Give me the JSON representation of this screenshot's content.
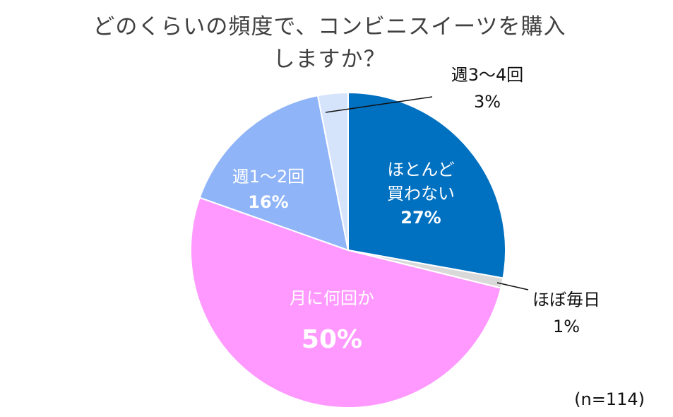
{
  "chart_data": {
    "type": "pie",
    "title_lines": [
      "どのくらいの頻度で、コンビニスイーツを購入",
      "しますか？"
    ],
    "note": "(n=114)",
    "slices": [
      {
        "label_lines": [
          "ほとんど",
          "買わない"
        ],
        "value_label": "27%",
        "value": 27,
        "color": "#0070C0"
      },
      {
        "label_lines": [
          "ほぼ毎日"
        ],
        "value_label": "1%",
        "value": 1,
        "color": "#D9D9D9"
      },
      {
        "label_lines": [
          "月に何回か"
        ],
        "value_label": "50%",
        "value": 50,
        "color": "#FF99FF"
      },
      {
        "label_lines": [
          "週1～2回"
        ],
        "value_label": "16%",
        "value": 16,
        "color": "#8FB4F7"
      },
      {
        "label_lines": [
          "週3～4回"
        ],
        "value_label": "3%",
        "value": 3,
        "color": "#D6E4FB"
      }
    ]
  }
}
